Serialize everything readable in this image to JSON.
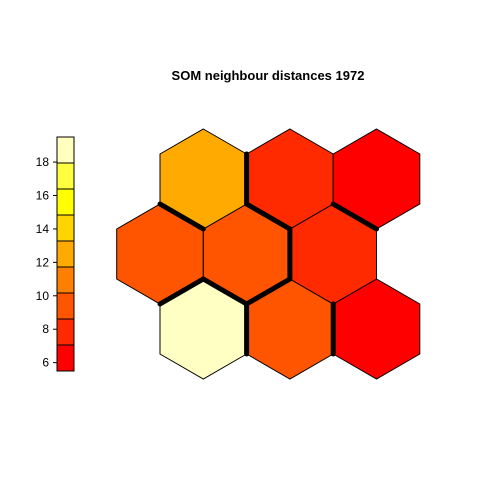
{
  "chart_data": {
    "type": "heatmap",
    "title": "SOM neighbour distances 1972",
    "grid": "hexagonal",
    "rows": 3,
    "cols": 3,
    "scale_ticks": [
      6,
      8,
      10,
      12,
      14,
      16,
      18
    ],
    "scale_range": [
      5.5,
      19.5
    ],
    "scale_colors": [
      "#FF0000",
      "#FF2A00",
      "#FF5500",
      "#FF8000",
      "#FFAA00",
      "#FFD400",
      "#FFFF00",
      "#FFFF40",
      "#FFFFBF"
    ],
    "cells": [
      {
        "row": 0,
        "col": 0,
        "value": 19.0,
        "color": "#FFFFC4"
      },
      {
        "row": 0,
        "col": 1,
        "value": 10.0,
        "color": "#FF5500"
      },
      {
        "row": 0,
        "col": 2,
        "value": 6.0,
        "color": "#FF0000"
      },
      {
        "row": 1,
        "col": 0,
        "value": 10.0,
        "color": "#FF5500"
      },
      {
        "row": 1,
        "col": 1,
        "value": 10.0,
        "color": "#FF5500"
      },
      {
        "row": 1,
        "col": 2,
        "value": 8.0,
        "color": "#FF2A00"
      },
      {
        "row": 2,
        "col": 0,
        "value": 12.0,
        "color": "#FFAA00"
      },
      {
        "row": 2,
        "col": 1,
        "value": 8.0,
        "color": "#FF2A00"
      },
      {
        "row": 2,
        "col": 2,
        "value": 6.0,
        "color": "#FF0000"
      }
    ],
    "cluster_boundaries": [
      {
        "a": [
          0,
          0
        ],
        "b": [
          1,
          0
        ]
      },
      {
        "a": [
          0,
          0
        ],
        "b": [
          1,
          1
        ]
      },
      {
        "a": [
          0,
          1
        ],
        "b": [
          0,
          0
        ]
      },
      {
        "a": [
          0,
          1
        ],
        "b": [
          1,
          1
        ]
      },
      {
        "a": [
          0,
          2
        ],
        "b": [
          0,
          1
        ]
      },
      {
        "a": [
          1,
          2
        ],
        "b": [
          1,
          1
        ]
      },
      {
        "a": [
          1,
          2
        ],
        "b": [
          2,
          2
        ]
      },
      {
        "a": [
          2,
          0
        ],
        "b": [
          1,
          0
        ]
      },
      {
        "a": [
          2,
          1
        ],
        "b": [
          2,
          0
        ]
      },
      {
        "a": [
          2,
          1
        ],
        "b": [
          1,
          1
        ]
      }
    ]
  }
}
